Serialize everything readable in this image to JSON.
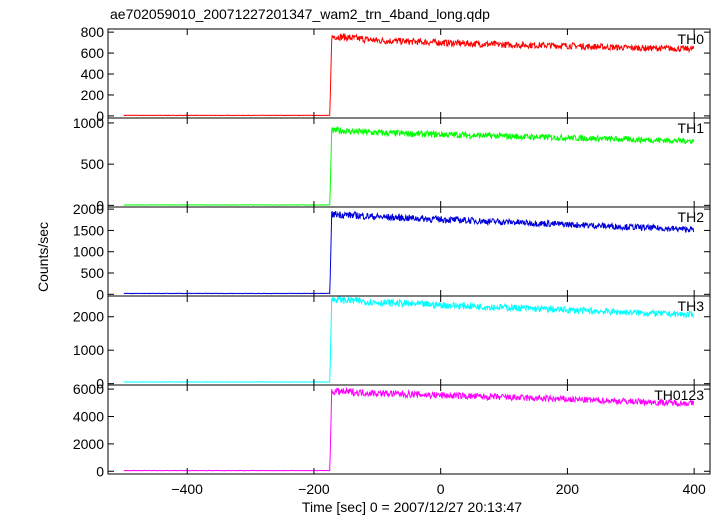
{
  "title": "ae702059010_20071227201347_wam2_trn_4band_long.qdp",
  "xlabel": "Time [sec] 0 = 2007/12/27 20:13:47",
  "ylabel": "Counts/sec",
  "chart_data": {
    "type": "line",
    "title": "ae702059010_20071227201347_wam2_trn_4band_long.qdp",
    "xlabel": "Time [sec] 0 = 2007/12/27 20:13:47",
    "ylabel": "Counts/sec",
    "xlim": [
      -525,
      425
    ],
    "x_ticks": [
      -400,
      -200,
      0,
      200,
      400
    ],
    "grid": false,
    "legend": "none",
    "panels": [
      {
        "name": "TH0",
        "color": "#ff0000",
        "ylim": [
          -20,
          830
        ],
        "y_ticks": [
          0,
          200,
          400,
          600,
          800
        ],
        "x": [
          -500,
          -175,
          -172,
          -165,
          -100,
          0,
          100,
          200,
          300,
          400
        ],
        "y": [
          5,
          5,
          750,
          760,
          720,
          700,
          680,
          670,
          650,
          640
        ]
      },
      {
        "name": "TH1",
        "color": "#00ff00",
        "ylim": [
          -20,
          1060
        ],
        "y_ticks": [
          0,
          500,
          1000
        ],
        "x": [
          -500,
          -175,
          -172,
          -165,
          -100,
          0,
          100,
          200,
          300,
          400
        ],
        "y": [
          5,
          5,
          900,
          910,
          880,
          860,
          840,
          820,
          800,
          780
        ]
      },
      {
        "name": "TH2",
        "color": "#0000dd",
        "ylim": [
          -40,
          2050
        ],
        "y_ticks": [
          0,
          500,
          1000,
          1500,
          2000
        ],
        "x": [
          -500,
          -175,
          -172,
          -165,
          -100,
          0,
          100,
          200,
          300,
          400
        ],
        "y": [
          20,
          20,
          1870,
          1880,
          1820,
          1760,
          1700,
          1640,
          1580,
          1520
        ]
      },
      {
        "name": "TH3",
        "color": "#00ffff",
        "ylim": [
          -40,
          2620
        ],
        "y_ticks": [
          0,
          1000,
          2000
        ],
        "x": [
          -500,
          -175,
          -172,
          -165,
          -100,
          0,
          100,
          200,
          300,
          400
        ],
        "y": [
          50,
          50,
          2500,
          2520,
          2430,
          2350,
          2280,
          2200,
          2130,
          2060
        ]
      },
      {
        "name": "TH0123",
        "color": "#ff00ff",
        "ylim": [
          -200,
          6300
        ],
        "y_ticks": [
          0,
          2000,
          4000,
          6000
        ],
        "x": [
          -500,
          -175,
          -172,
          -165,
          -100,
          0,
          100,
          200,
          300,
          400
        ],
        "y": [
          50,
          50,
          5800,
          5820,
          5700,
          5550,
          5400,
          5250,
          5100,
          4950
        ]
      }
    ]
  }
}
